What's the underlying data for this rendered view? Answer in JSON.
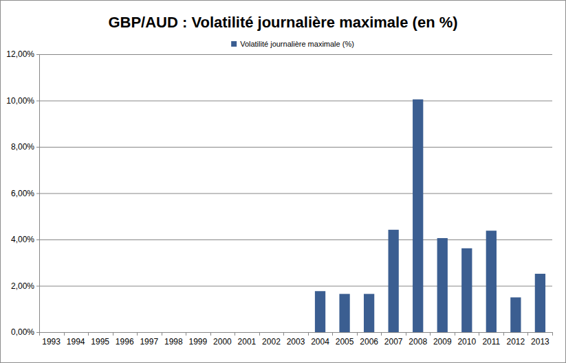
{
  "chart_data": {
    "type": "bar",
    "title": "GBP/AUD : Volatilité journalière maximale (en %)",
    "categories": [
      "1993",
      "1994",
      "1995",
      "1996",
      "1997",
      "1998",
      "1999",
      "2000",
      "2001",
      "2002",
      "2003",
      "2004",
      "2005",
      "2006",
      "2007",
      "2008",
      "2009",
      "2010",
      "2011",
      "2012",
      "2013"
    ],
    "series": [
      {
        "name": "Volatilité journalière maximale  (%)",
        "color": "#3b5e91",
        "values": [
          null,
          null,
          null,
          null,
          null,
          null,
          null,
          null,
          null,
          null,
          null,
          1.77,
          1.65,
          1.65,
          4.42,
          10.05,
          4.06,
          3.62,
          4.38,
          1.5,
          2.52
        ]
      }
    ],
    "ylim": [
      0,
      12
    ],
    "yticks": [
      {
        "value": 0,
        "label": "0,00%"
      },
      {
        "value": 2,
        "label": "2,00%"
      },
      {
        "value": 4,
        "label": "4,00%"
      },
      {
        "value": 6,
        "label": "6,00%"
      },
      {
        "value": 8,
        "label": "8,00%"
      },
      {
        "value": 10,
        "label": "10,00%"
      },
      {
        "value": 12,
        "label": "12,00%"
      }
    ],
    "grid": true,
    "legend": "top"
  }
}
